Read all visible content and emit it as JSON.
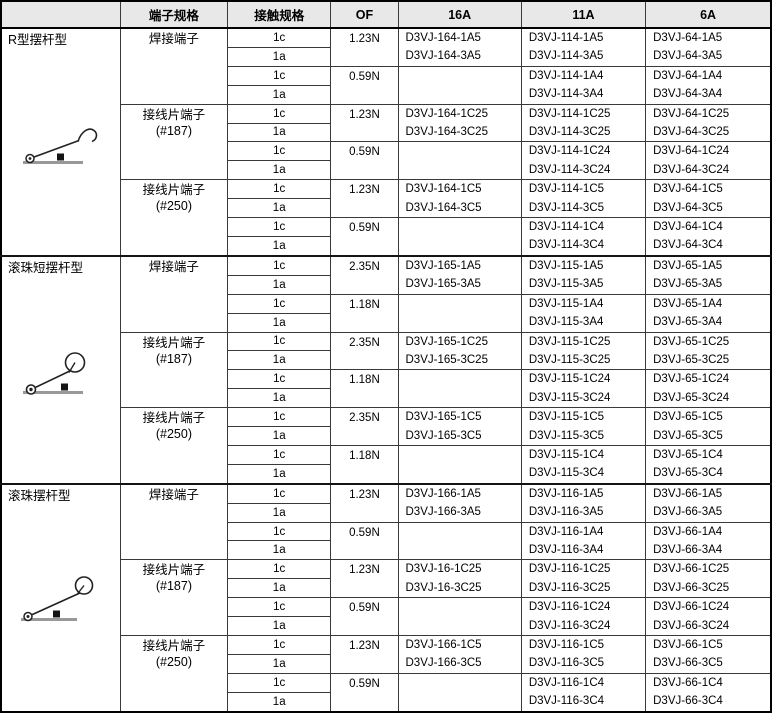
{
  "colors": {
    "header_bg": "#e8e8e8",
    "inner_border": "#3a3a3a",
    "outer_border": "#000000",
    "icon_baseline": "#999999"
  },
  "header": {
    "col_type": "",
    "col_terminal": "端子规格",
    "col_contact": "接触规格",
    "col_of": "OF",
    "col_16a": "16A",
    "col_11a": "11A",
    "col_6a": "6A"
  },
  "sections": [
    {
      "type_label": "R型摆杆型",
      "icon": "r-lever-icon",
      "groups": [
        {
          "terminal_line1": "焊接端子",
          "terminal_line2": "",
          "rows": [
            {
              "contact_top": "1c",
              "contact_bottom": "1a",
              "of": "1.23N",
              "parts_16a": [
                "D3VJ-164-1A5",
                "D3VJ-164-3A5"
              ],
              "parts_11a": [
                "D3VJ-114-1A5",
                "D3VJ-114-3A5"
              ],
              "parts_6a": [
                "D3VJ-64-1A5",
                "D3VJ-64-3A5"
              ]
            },
            {
              "contact_top": "1c",
              "contact_bottom": "1a",
              "of": "0.59N",
              "parts_16a": [],
              "parts_11a": [
                "D3VJ-114-1A4",
                "D3VJ-114-3A4"
              ],
              "parts_6a": [
                "D3VJ-64-1A4",
                "D3VJ-64-3A4"
              ]
            }
          ]
        },
        {
          "terminal_line1": "接线片端子",
          "terminal_line2": "(#187)",
          "rows": [
            {
              "contact_top": "1c",
              "contact_bottom": "1a",
              "of": "1.23N",
              "parts_16a": [
                "D3VJ-164-1C25",
                "D3VJ-164-3C25"
              ],
              "parts_11a": [
                "D3VJ-114-1C25",
                "D3VJ-114-3C25"
              ],
              "parts_6a": [
                "D3VJ-64-1C25",
                "D3VJ-64-3C25"
              ]
            },
            {
              "contact_top": "1c",
              "contact_bottom": "1a",
              "of": "0.59N",
              "parts_16a": [],
              "parts_11a": [
                "D3VJ-114-1C24",
                "D3VJ-114-3C24"
              ],
              "parts_6a": [
                "D3VJ-64-1C24",
                "D3VJ-64-3C24"
              ]
            }
          ]
        },
        {
          "terminal_line1": "接线片端子",
          "terminal_line2": "(#250)",
          "rows": [
            {
              "contact_top": "1c",
              "contact_bottom": "1a",
              "of": "1.23N",
              "parts_16a": [
                "D3VJ-164-1C5",
                "D3VJ-164-3C5"
              ],
              "parts_11a": [
                "D3VJ-114-1C5",
                "D3VJ-114-3C5"
              ],
              "parts_6a": [
                "D3VJ-64-1C5",
                "D3VJ-64-3C5"
              ]
            },
            {
              "contact_top": "1c",
              "contact_bottom": "1a",
              "of": "0.59N",
              "parts_16a": [],
              "parts_11a": [
                "D3VJ-114-1C4",
                "D3VJ-114-3C4"
              ],
              "parts_6a": [
                "D3VJ-64-1C4",
                "D3VJ-64-3C4"
              ]
            }
          ]
        }
      ]
    },
    {
      "type_label": "滚珠短摆杆型",
      "icon": "short-roller-lever-icon",
      "groups": [
        {
          "terminal_line1": "焊接端子",
          "terminal_line2": "",
          "rows": [
            {
              "contact_top": "1c",
              "contact_bottom": "1a",
              "of": "2.35N",
              "parts_16a": [
                "D3VJ-165-1A5",
                "D3VJ-165-3A5"
              ],
              "parts_11a": [
                "D3VJ-115-1A5",
                "D3VJ-115-3A5"
              ],
              "parts_6a": [
                "D3VJ-65-1A5",
                "D3VJ-65-3A5"
              ]
            },
            {
              "contact_top": "1c",
              "contact_bottom": "1a",
              "of": "1.18N",
              "parts_16a": [],
              "parts_11a": [
                "D3VJ-115-1A4",
                "D3VJ-115-3A4"
              ],
              "parts_6a": [
                "D3VJ-65-1A4",
                "D3VJ-65-3A4"
              ]
            }
          ]
        },
        {
          "terminal_line1": "接线片端子",
          "terminal_line2": "(#187)",
          "rows": [
            {
              "contact_top": "1c",
              "contact_bottom": "1a",
              "of": "2.35N",
              "parts_16a": [
                "D3VJ-165-1C25",
                "D3VJ-165-3C25"
              ],
              "parts_11a": [
                "D3VJ-115-1C25",
                "D3VJ-115-3C25"
              ],
              "parts_6a": [
                "D3VJ-65-1C25",
                "D3VJ-65-3C25"
              ]
            },
            {
              "contact_top": "1c",
              "contact_bottom": "1a",
              "of": "1.18N",
              "parts_16a": [],
              "parts_11a": [
                "D3VJ-115-1C24",
                "D3VJ-115-3C24"
              ],
              "parts_6a": [
                "D3VJ-65-1C24",
                "D3VJ-65-3C24"
              ]
            }
          ]
        },
        {
          "terminal_line1": "接线片端子",
          "terminal_line2": "(#250)",
          "rows": [
            {
              "contact_top": "1c",
              "contact_bottom": "1a",
              "of": "2.35N",
              "parts_16a": [
                "D3VJ-165-1C5",
                "D3VJ-165-3C5"
              ],
              "parts_11a": [
                "D3VJ-115-1C5",
                "D3VJ-115-3C5"
              ],
              "parts_6a": [
                "D3VJ-65-1C5",
                "D3VJ-65-3C5"
              ]
            },
            {
              "contact_top": "1c",
              "contact_bottom": "1a",
              "of": "1.18N",
              "parts_16a": [],
              "parts_11a": [
                "D3VJ-115-1C4",
                "D3VJ-115-3C4"
              ],
              "parts_6a": [
                "D3VJ-65-1C4",
                "D3VJ-65-3C4"
              ]
            }
          ]
        }
      ]
    },
    {
      "type_label": "滚珠摆杆型",
      "icon": "roller-lever-icon",
      "groups": [
        {
          "terminal_line1": "焊接端子",
          "terminal_line2": "",
          "rows": [
            {
              "contact_top": "1c",
              "contact_bottom": "1a",
              "of": "1.23N",
              "parts_16a": [
                "D3VJ-166-1A5",
                "D3VJ-166-3A5"
              ],
              "parts_11a": [
                "D3VJ-116-1A5",
                "D3VJ-116-3A5"
              ],
              "parts_6a": [
                "D3VJ-66-1A5",
                "D3VJ-66-3A5"
              ]
            },
            {
              "contact_top": "1c",
              "contact_bottom": "1a",
              "of": "0.59N",
              "parts_16a": [],
              "parts_11a": [
                "D3VJ-116-1A4",
                "D3VJ-116-3A4"
              ],
              "parts_6a": [
                "D3VJ-66-1A4",
                "D3VJ-66-3A4"
              ]
            }
          ]
        },
        {
          "terminal_line1": "接线片端子",
          "terminal_line2": "(#187)",
          "rows": [
            {
              "contact_top": "1c",
              "contact_bottom": "1a",
              "of": "1.23N",
              "parts_16a": [
                "D3VJ-16-1C25",
                "D3VJ-16-3C25"
              ],
              "parts_11a": [
                "D3VJ-116-1C25",
                "D3VJ-116-3C25"
              ],
              "parts_6a": [
                "D3VJ-66-1C25",
                "D3VJ-66-3C25"
              ]
            },
            {
              "contact_top": "1c",
              "contact_bottom": "1a",
              "of": "0.59N",
              "parts_16a": [],
              "parts_11a": [
                "D3VJ-116-1C24",
                "D3VJ-116-3C24"
              ],
              "parts_6a": [
                "D3VJ-66-1C24",
                "D3VJ-66-3C24"
              ]
            }
          ]
        },
        {
          "terminal_line1": "接线片端子",
          "terminal_line2": "(#250)",
          "rows": [
            {
              "contact_top": "1c",
              "contact_bottom": "1a",
              "of": "1.23N",
              "parts_16a": [
                "D3VJ-166-1C5",
                "D3VJ-166-3C5"
              ],
              "parts_11a": [
                "D3VJ-116-1C5",
                "D3VJ-116-3C5"
              ],
              "parts_6a": [
                "D3VJ-66-1C5",
                "D3VJ-66-3C5"
              ]
            },
            {
              "contact_top": "1c",
              "contact_bottom": "1a",
              "of": "0.59N",
              "parts_16a": [],
              "parts_11a": [
                "D3VJ-116-1C4",
                "D3VJ-116-3C4"
              ],
              "parts_6a": [
                "D3VJ-66-1C4",
                "D3VJ-66-3C4"
              ]
            }
          ]
        }
      ]
    }
  ]
}
